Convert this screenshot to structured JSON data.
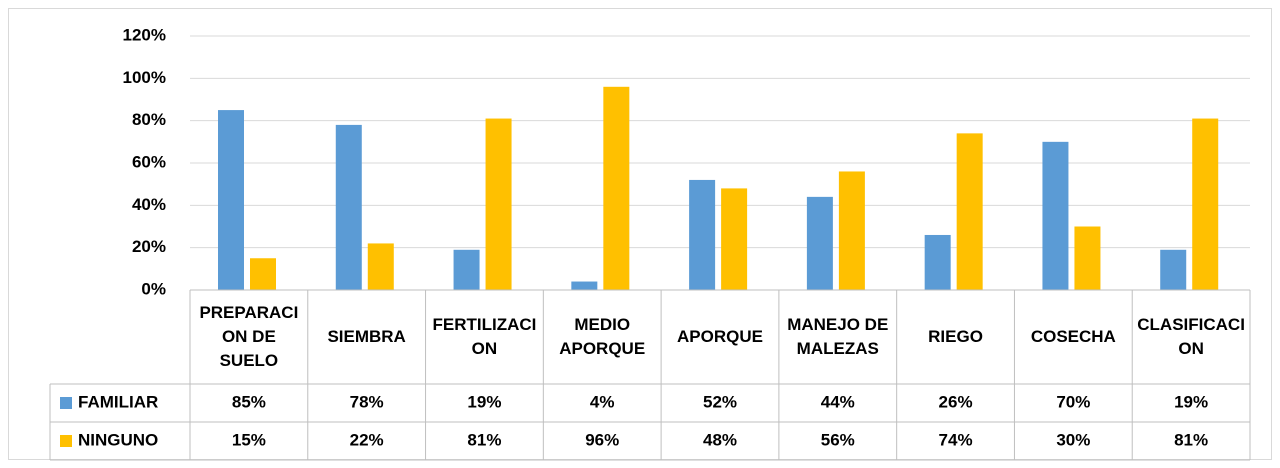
{
  "chart_data": {
    "type": "bar",
    "categories": [
      "PREPARACION DE SUELO",
      "SIEMBRA",
      "FERTILIZACION",
      "MEDIO APORQUE",
      "APORQUE",
      "MANEJO DE MALEZAS",
      "RIEGO",
      "COSECHA",
      "CLASIFICACION"
    ],
    "series": [
      {
        "name": "FAMILIAR",
        "color": "#5b9bd5",
        "values": [
          85,
          78,
          19,
          4,
          52,
          44,
          26,
          70,
          19
        ],
        "value_labels": [
          "85%",
          "78%",
          "19%",
          "4%",
          "52%",
          "44%",
          "26%",
          "70%",
          "19%"
        ]
      },
      {
        "name": "NINGUNO",
        "color": "#ffc000",
        "values": [
          15,
          22,
          81,
          96,
          48,
          56,
          74,
          30,
          81
        ],
        "value_labels": [
          "15%",
          "22%",
          "81%",
          "96%",
          "48%",
          "56%",
          "74%",
          "30%",
          "81%"
        ]
      }
    ],
    "ylim": [
      0,
      120
    ],
    "yticks": [
      {
        "value": 0,
        "label": "0%"
      },
      {
        "value": 20,
        "label": "20%"
      },
      {
        "value": 40,
        "label": "40%"
      },
      {
        "value": 60,
        "label": "60%"
      },
      {
        "value": 80,
        "label": "80%"
      },
      {
        "value": 100,
        "label": "100%"
      },
      {
        "value": 120,
        "label": "120%"
      }
    ],
    "grid": true
  }
}
